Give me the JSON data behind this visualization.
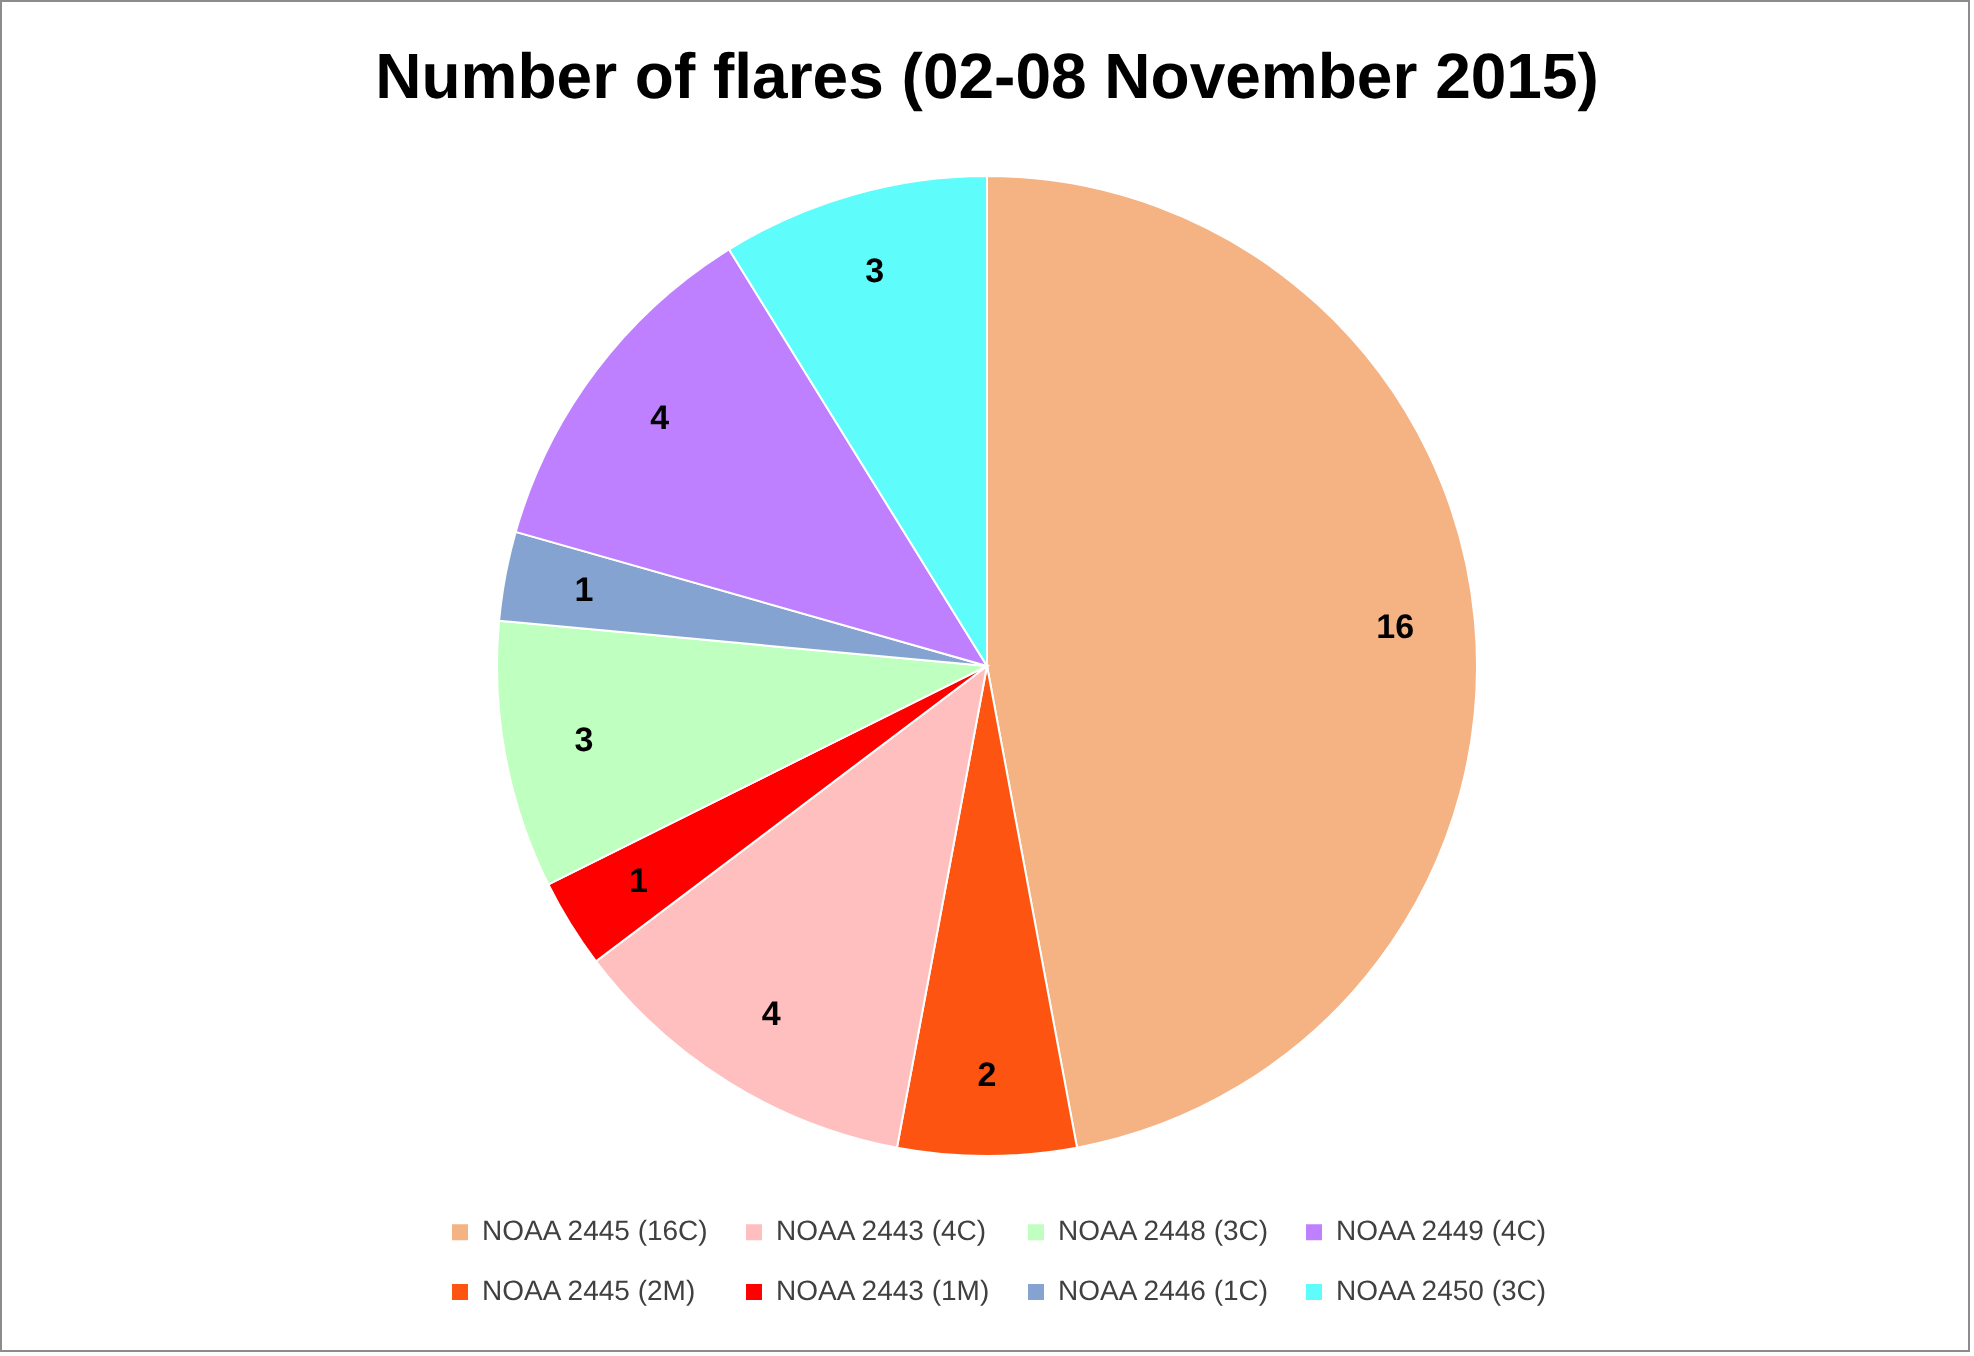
{
  "chart_data": {
    "type": "pie",
    "title": "Number of flares (02-08 November 2015)",
    "categories": [
      "NOAA 2445 (16C)",
      "NOAA 2445 (2M)",
      "NOAA 2443 (4C)",
      "NOAA 2443 (1M)",
      "NOAA 2448 (3C)",
      "NOAA 2446 (1C)",
      "NOAA 2449 (4C)",
      "NOAA 2450 (3C)"
    ],
    "values": [
      16,
      2,
      4,
      1,
      3,
      1,
      4,
      3
    ],
    "colors": [
      "#f5b283",
      "#fd5412",
      "#ffbfbf",
      "#ff0000",
      "#bfffbf",
      "#84a3d1",
      "#bf80ff",
      "#5ffcfc"
    ],
    "data_labels": true,
    "legend": "bottom"
  }
}
